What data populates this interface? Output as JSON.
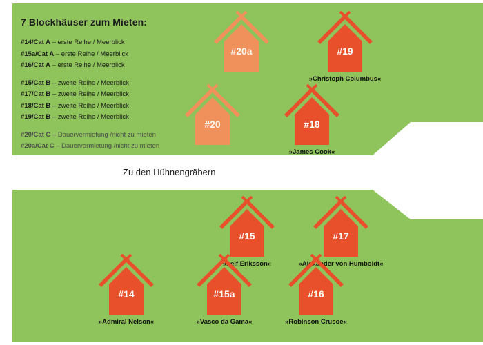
{
  "colors": {
    "land": "#8fc35b",
    "road": "#ffffff",
    "house_available": "#e8502c",
    "house_rented": "#f0905a"
  },
  "legend": {
    "title": "7 Blockhäuser zum Mieten:",
    "groups": [
      [
        {
          "code": "#14/Cat A",
          "desc": " – erste Reihe / Meerblick"
        },
        {
          "code": "#15a/Cat A",
          "desc": " – erste Reihe / Meerblick"
        },
        {
          "code": "#16/Cat A",
          "desc": " – erste Reihe / Meerblick"
        }
      ],
      [
        {
          "code": "#15/Cat B",
          "desc": " – zweite Reihe / Meerblick"
        },
        {
          "code": "#17/Cat B",
          "desc": " – zweite Reihe / Meerblick"
        },
        {
          "code": "#18/Cat B",
          "desc": " – zweite Reihe / Meerblick"
        },
        {
          "code": "#19/Cat B",
          "desc": " – zweite Reihe / Meerblick"
        }
      ],
      [
        {
          "code": "#20/Cat C",
          "desc": " – Dauervermietung /nicht zu mieten"
        },
        {
          "code": "#20a/Cat C",
          "desc": " – Dauervermietung /nicht zu mieten"
        }
      ]
    ]
  },
  "road_label": "Zu den Hühnengräbern",
  "houses": [
    {
      "number": "#20a",
      "name": "",
      "status": "rented",
      "icon": "house-icon"
    },
    {
      "number": "#19",
      "name": "»Christoph Columbus«",
      "status": "available",
      "icon": "house-icon"
    },
    {
      "number": "#20",
      "name": "",
      "status": "rented",
      "icon": "house-icon"
    },
    {
      "number": "#18",
      "name": "»James Cook«",
      "status": "available",
      "icon": "house-icon"
    },
    {
      "number": "#15",
      "name": "»Leif Eriksson«",
      "status": "available",
      "icon": "house-icon"
    },
    {
      "number": "#17",
      "name": "»Alexander von Humboldt«",
      "status": "available",
      "icon": "house-icon"
    },
    {
      "number": "#14",
      "name": "»Admiral Nelson«",
      "status": "available",
      "icon": "house-icon"
    },
    {
      "number": "#15a",
      "name": "»Vasco da Gama«",
      "status": "available",
      "icon": "house-icon"
    },
    {
      "number": "#16",
      "name": "»Robinson Crusoe«",
      "status": "available",
      "icon": "house-icon"
    }
  ]
}
